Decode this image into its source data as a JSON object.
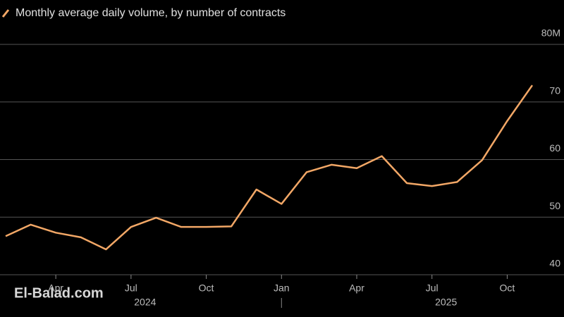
{
  "chart_data": {
    "type": "line",
    "legend_label": "Monthly average daily volume, by number of contracts",
    "x": [
      "2024-02",
      "2024-03",
      "2024-04",
      "2024-05",
      "2024-06",
      "2024-07",
      "2024-08",
      "2024-09",
      "2024-10",
      "2024-11",
      "2024-12",
      "2025-01",
      "2025-02",
      "2025-03",
      "2025-04",
      "2025-05",
      "2025-06",
      "2025-07",
      "2025-08",
      "2025-09",
      "2025-10",
      "2025-11"
    ],
    "series": [
      {
        "name": "Monthly average daily volume, by number of contracts",
        "color": "#f2a766",
        "values": [
          46.7,
          48.7,
          47.3,
          46.5,
          44.4,
          48.3,
          49.9,
          48.3,
          48.3,
          48.4,
          54.8,
          52.3,
          57.8,
          59.1,
          58.5,
          60.6,
          55.9,
          55.4,
          56.1,
          59.9,
          66.7,
          72.9
        ]
      }
    ],
    "xlim": [
      "2024-02",
      "2025-11"
    ],
    "xticks": [
      {
        "value": "2024-04",
        "label": "Apr"
      },
      {
        "value": "2024-07",
        "label": "Jul"
      },
      {
        "value": "2024-10",
        "label": "Oct"
      },
      {
        "value": "2025-01",
        "label": "Jan"
      },
      {
        "value": "2025-04",
        "label": "Apr"
      },
      {
        "value": "2025-07",
        "label": "Jul"
      },
      {
        "value": "2025-10",
        "label": "Oct"
      }
    ],
    "year_labels": [
      "2024",
      "2025"
    ],
    "ylim": [
      40,
      80
    ],
    "yticks": [
      40,
      50,
      60,
      70,
      {
        "value": 80,
        "label": "80M"
      }
    ],
    "grid": true,
    "watermark": "El-Balad.com"
  }
}
